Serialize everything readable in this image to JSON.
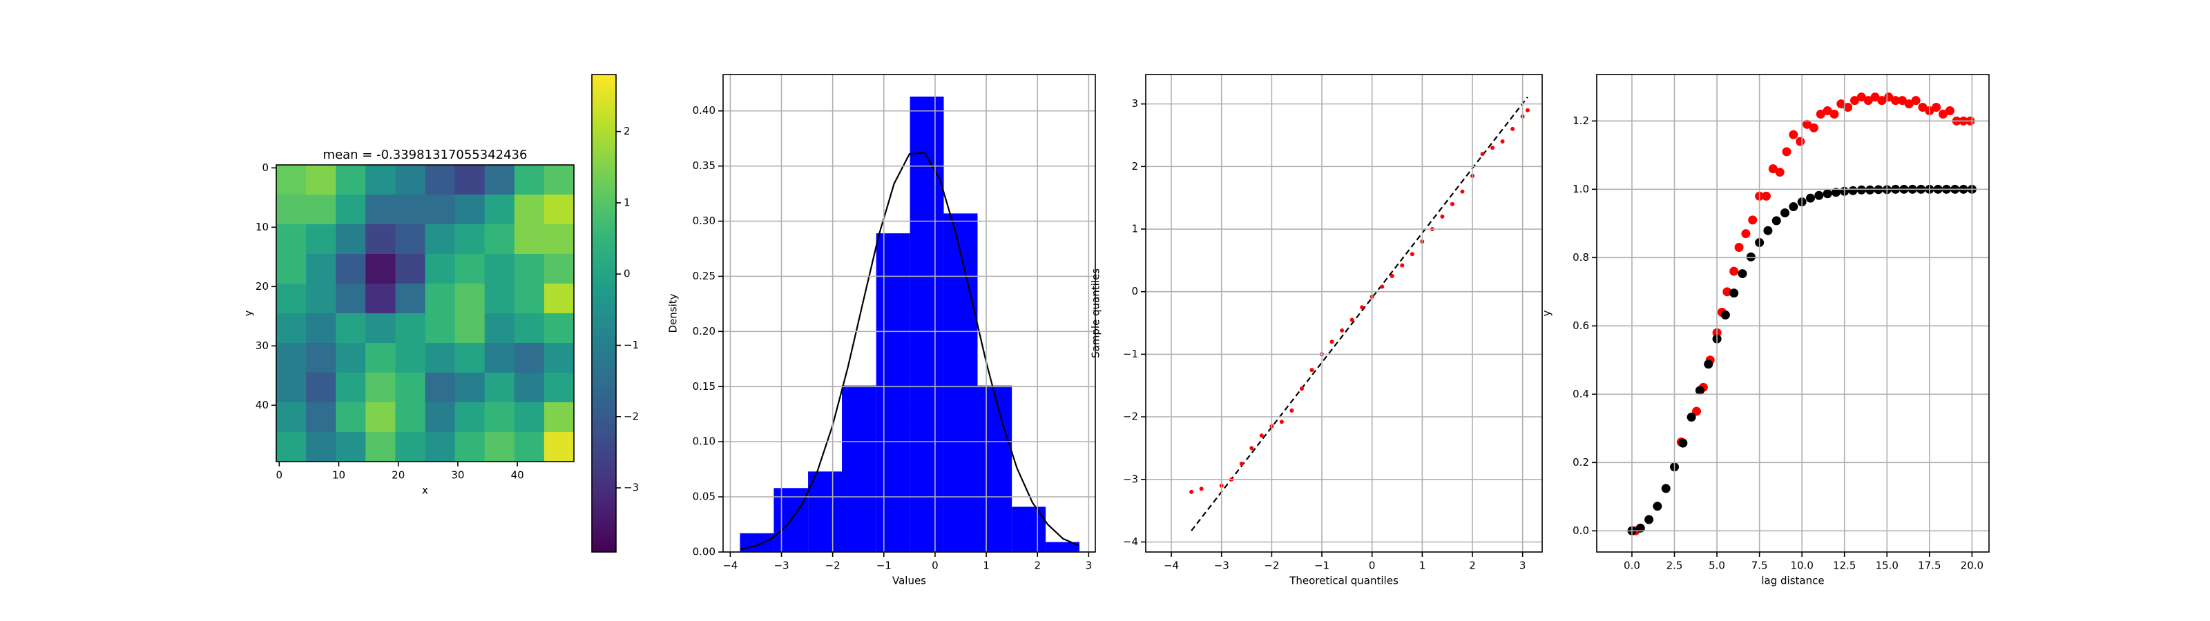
{
  "chart_data": [
    {
      "type": "heatmap",
      "title": "mean = -0.33981317055342436",
      "xlabel": "x",
      "ylabel": "y",
      "xlim": [
        -0.5,
        49.5
      ],
      "ylim": [
        49.5,
        -0.5
      ],
      "xticks": [
        0,
        10,
        20,
        30,
        40
      ],
      "yticks": [
        0,
        10,
        20,
        30,
        40
      ],
      "colormap": "viridis",
      "grid": false,
      "z": [
        [
          1.2,
          1.5,
          0.5,
          -0.5,
          -1.0,
          -2.0,
          -2.5,
          -1.5,
          0.5,
          1.0
        ],
        [
          1.0,
          1.0,
          0.0,
          -1.5,
          -1.5,
          -1.5,
          -1.0,
          0.0,
          1.5,
          2.0
        ],
        [
          0.5,
          0.0,
          -1.0,
          -2.5,
          -2.0,
          -0.5,
          0.0,
          0.5,
          1.5,
          1.5
        ],
        [
          0.5,
          -0.5,
          -2.0,
          -3.5,
          -2.5,
          0.0,
          0.5,
          0.0,
          0.5,
          1.0
        ],
        [
          0.0,
          -0.5,
          -1.5,
          -3.0,
          -1.5,
          0.5,
          1.0,
          0.0,
          0.5,
          2.0
        ],
        [
          -0.5,
          -1.0,
          0.0,
          -0.5,
          0.0,
          0.5,
          1.0,
          -0.5,
          0.0,
          0.5
        ],
        [
          -1.0,
          -1.5,
          -0.5,
          0.5,
          0.0,
          -0.5,
          0.0,
          -1.0,
          -1.5,
          -0.5
        ],
        [
          -1.0,
          -2.0,
          0.0,
          1.0,
          0.5,
          -1.5,
          -1.0,
          0.0,
          -1.0,
          0.0
        ],
        [
          -0.5,
          -1.5,
          0.5,
          1.5,
          0.5,
          -1.0,
          0.0,
          0.5,
          0.0,
          1.5
        ],
        [
          0.0,
          -1.0,
          -0.5,
          1.0,
          0.0,
          -0.5,
          0.5,
          1.0,
          0.5,
          2.5
        ]
      ],
      "colorbar": {
        "lim": [
          -3.9,
          2.8
        ],
        "ticks": [
          {
            "value": -3,
            "label": "−3"
          },
          {
            "value": -2,
            "label": "−2"
          },
          {
            "value": -1,
            "label": "−1"
          },
          0,
          1,
          2
        ]
      }
    },
    {
      "type": "histogram",
      "xlabel": "Values",
      "ylabel": "Density",
      "color": "#0000ff",
      "grid": true,
      "bins": [
        -3.81,
        -3.15,
        -2.48,
        -1.82,
        -1.15,
        -0.49,
        0.17,
        0.83,
        1.5,
        2.16,
        2.82
      ],
      "values": [
        0.017,
        0.058,
        0.073,
        0.151,
        0.289,
        0.413,
        0.307,
        0.151,
        0.041,
        0.009
      ],
      "curve": {
        "color": "#000000",
        "x": [
          -3.8,
          -3.5,
          -3.2,
          -2.9,
          -2.6,
          -2.3,
          -2.0,
          -1.7,
          -1.4,
          -1.1,
          -0.8,
          -0.5,
          -0.2,
          0.1,
          0.4,
          0.7,
          1.0,
          1.3,
          1.6,
          1.9,
          2.2,
          2.5,
          2.8
        ],
        "y": [
          0.0024,
          0.0056,
          0.0119,
          0.0236,
          0.043,
          0.073,
          0.115,
          0.168,
          0.228,
          0.287,
          0.334,
          0.361,
          0.362,
          0.337,
          0.29,
          0.232,
          0.172,
          0.119,
          0.076,
          0.045,
          0.025,
          0.012,
          0.006
        ]
      },
      "xlim": [
        -4.14,
        3.13
      ],
      "ylim": [
        0,
        0.433
      ],
      "xticks": [
        {
          "value": -4,
          "label": "−4"
        },
        {
          "value": -3,
          "label": "−3"
        },
        {
          "value": -2,
          "label": "−2"
        },
        {
          "value": -1,
          "label": "−1"
        },
        0,
        1,
        2,
        3
      ],
      "yticks": [
        {
          "value": 0,
          "label": "0.00"
        },
        {
          "value": 0.05,
          "label": "0.05"
        },
        {
          "value": 0.1,
          "label": "0.10"
        },
        {
          "value": 0.15,
          "label": "0.15"
        },
        {
          "value": 0.2,
          "label": "0.20"
        },
        {
          "value": 0.25,
          "label": "0.25"
        },
        {
          "value": 0.3,
          "label": "0.30"
        },
        {
          "value": 0.35,
          "label": "0.35"
        },
        {
          "value": 0.4,
          "label": "0.40"
        }
      ]
    },
    {
      "type": "scatter",
      "xlabel": "Theoretical quantiles",
      "ylabel": "Sample quantiles",
      "grid": true,
      "series": [
        {
          "color": "#ff0000",
          "x": [
            -3.6,
            -3.4,
            -3.0,
            -2.8,
            -2.6,
            -2.4,
            -2.2,
            -2.0,
            -1.8,
            -1.6,
            -1.4,
            -1.2,
            -1.0,
            -0.8,
            -0.6,
            -0.4,
            -0.2,
            0,
            0.2,
            0.4,
            0.6,
            0.8,
            1.0,
            1.2,
            1.4,
            1.6,
            1.8,
            2.0,
            2.2,
            2.4,
            2.6,
            2.8,
            3.0,
            3.1
          ],
          "y": [
            -3.2,
            -3.15,
            -3.1,
            -3.0,
            -2.75,
            -2.5,
            -2.3,
            -2.15,
            -2.08,
            -1.9,
            -1.55,
            -1.25,
            -1.0,
            -0.8,
            -0.62,
            -0.45,
            -0.25,
            -0.08,
            0.08,
            0.25,
            0.42,
            0.6,
            0.8,
            1.0,
            1.2,
            1.4,
            1.6,
            1.85,
            2.2,
            2.3,
            2.4,
            2.6,
            2.8,
            2.9
          ]
        }
      ],
      "reference": {
        "color": "#000000",
        "style": "dashed",
        "x": [
          -3.6,
          3.1
        ],
        "y": [
          -3.82,
          3.11
        ]
      },
      "xlim": [
        -4.51,
        3.39
      ],
      "ylim": [
        -4.16,
        3.47
      ],
      "xticks": [
        {
          "value": -4,
          "label": "−4"
        },
        {
          "value": -3,
          "label": "−3"
        },
        {
          "value": -2,
          "label": "−2"
        },
        {
          "value": -1,
          "label": "−1"
        },
        0,
        1,
        2,
        3
      ],
      "yticks": [
        {
          "value": -4,
          "label": "−4"
        },
        {
          "value": -3,
          "label": "−3"
        },
        {
          "value": -2,
          "label": "−2"
        },
        {
          "value": -1,
          "label": "−1"
        },
        0,
        1,
        2,
        3
      ]
    },
    {
      "type": "scatter",
      "xlabel": "lag distance",
      "ylabel": "y",
      "grid": true,
      "series": [
        {
          "color": "#ff0000",
          "x": [
            0.2,
            2.9,
            3.8,
            4.2,
            4.6,
            5.0,
            5.3,
            5.6,
            6.0,
            6.3,
            6.7,
            7.1,
            7.5,
            7.9,
            8.3,
            8.7,
            9.1,
            9.5,
            9.9,
            10.3,
            10.7,
            11.1,
            11.5,
            11.9,
            12.3,
            12.7,
            13.1,
            13.5,
            13.9,
            14.3,
            14.7,
            15.1,
            15.5,
            15.9,
            16.3,
            16.7,
            17.1,
            17.5,
            17.9,
            18.3,
            18.7,
            19.1,
            19.5,
            19.9
          ],
          "y": [
            0.0,
            0.26,
            0.35,
            0.42,
            0.5,
            0.58,
            0.64,
            0.7,
            0.76,
            0.83,
            0.87,
            0.91,
            0.98,
            0.98,
            1.06,
            1.05,
            1.11,
            1.16,
            1.14,
            1.19,
            1.18,
            1.22,
            1.23,
            1.22,
            1.25,
            1.24,
            1.26,
            1.27,
            1.26,
            1.27,
            1.26,
            1.27,
            1.26,
            1.26,
            1.25,
            1.26,
            1.24,
            1.23,
            1.24,
            1.22,
            1.23,
            1.2,
            1.2,
            1.2
          ]
        },
        {
          "color": "#000000",
          "x": [
            0,
            0.5,
            1,
            1.5,
            2,
            2.5,
            3,
            3.5,
            4,
            4.5,
            5,
            5.5,
            6,
            6.5,
            7,
            7.5,
            8,
            8.5,
            9,
            9.5,
            10,
            10.5,
            11,
            11.5,
            12,
            12.5,
            13,
            13.5,
            14,
            14.5,
            15,
            15.5,
            16,
            16.5,
            17,
            17.5,
            18,
            18.5,
            19,
            19.5,
            20
          ],
          "y": [
            0,
            0.008,
            0.033,
            0.072,
            0.124,
            0.187,
            0.257,
            0.333,
            0.411,
            0.488,
            0.562,
            0.632,
            0.696,
            0.753,
            0.802,
            0.844,
            0.879,
            0.908,
            0.931,
            0.949,
            0.963,
            0.974,
            0.982,
            0.987,
            0.991,
            0.994,
            0.996,
            0.998,
            0.998,
            0.999,
            0.999,
            1.0,
            1.0,
            1.0,
            1.0,
            1.0,
            1.0,
            1.0,
            1.0,
            1.0,
            1.0
          ]
        }
      ],
      "xlim": [
        -2.07,
        21.0
      ],
      "ylim": [
        -0.062,
        1.336
      ],
      "xticks": [
        {
          "value": 0,
          "label": "0.0"
        },
        {
          "value": 2.5,
          "label": "2.5"
        },
        {
          "value": 5,
          "label": "5.0"
        },
        {
          "value": 7.5,
          "label": "7.5"
        },
        {
          "value": 10,
          "label": "10.0"
        },
        {
          "value": 12.5,
          "label": "12.5"
        },
        {
          "value": 15,
          "label": "15.0"
        },
        {
          "value": 17.5,
          "label": "17.5"
        },
        {
          "value": 20,
          "label": "20.0"
        }
      ],
      "yticks": [
        {
          "value": 0,
          "label": "0.0"
        },
        {
          "value": 0.2,
          "label": "0.2"
        },
        {
          "value": 0.4,
          "label": "0.4"
        },
        {
          "value": 0.6,
          "label": "0.6"
        },
        {
          "value": 0.8,
          "label": "0.8"
        },
        {
          "value": 1.0,
          "label": "1.0"
        },
        {
          "value": 1.2,
          "label": "1.2"
        }
      ]
    }
  ]
}
